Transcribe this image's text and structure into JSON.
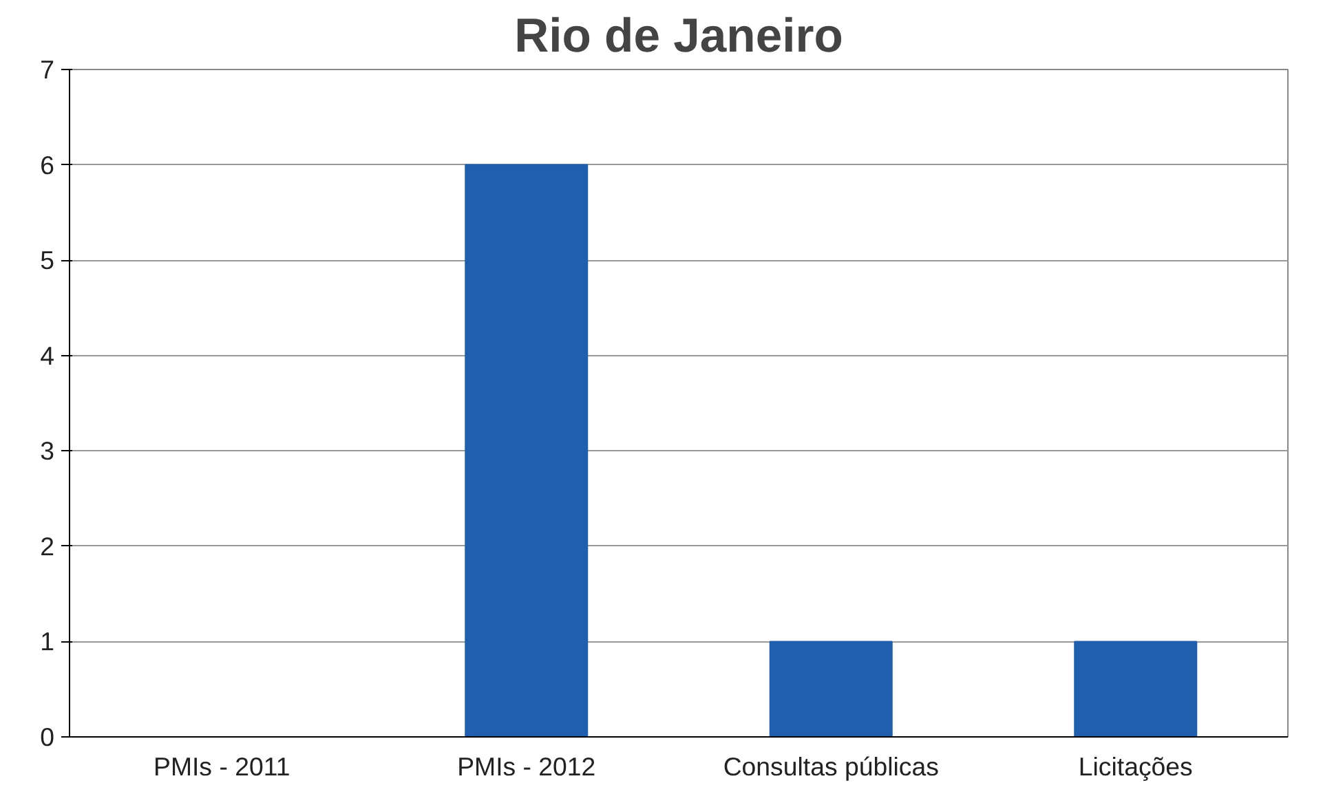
{
  "chart_data": {
    "type": "bar",
    "title": "Rio de Janeiro",
    "categories": [
      "PMIs - 2011",
      "PMIs - 2012",
      "Consultas públicas",
      "Licitações"
    ],
    "values": [
      0,
      6,
      1,
      1
    ],
    "color": "#1f5fae",
    "ylim": [
      0,
      7
    ],
    "yticks": [
      0,
      1,
      2,
      3,
      4,
      5,
      6,
      7
    ],
    "grid": "y"
  }
}
